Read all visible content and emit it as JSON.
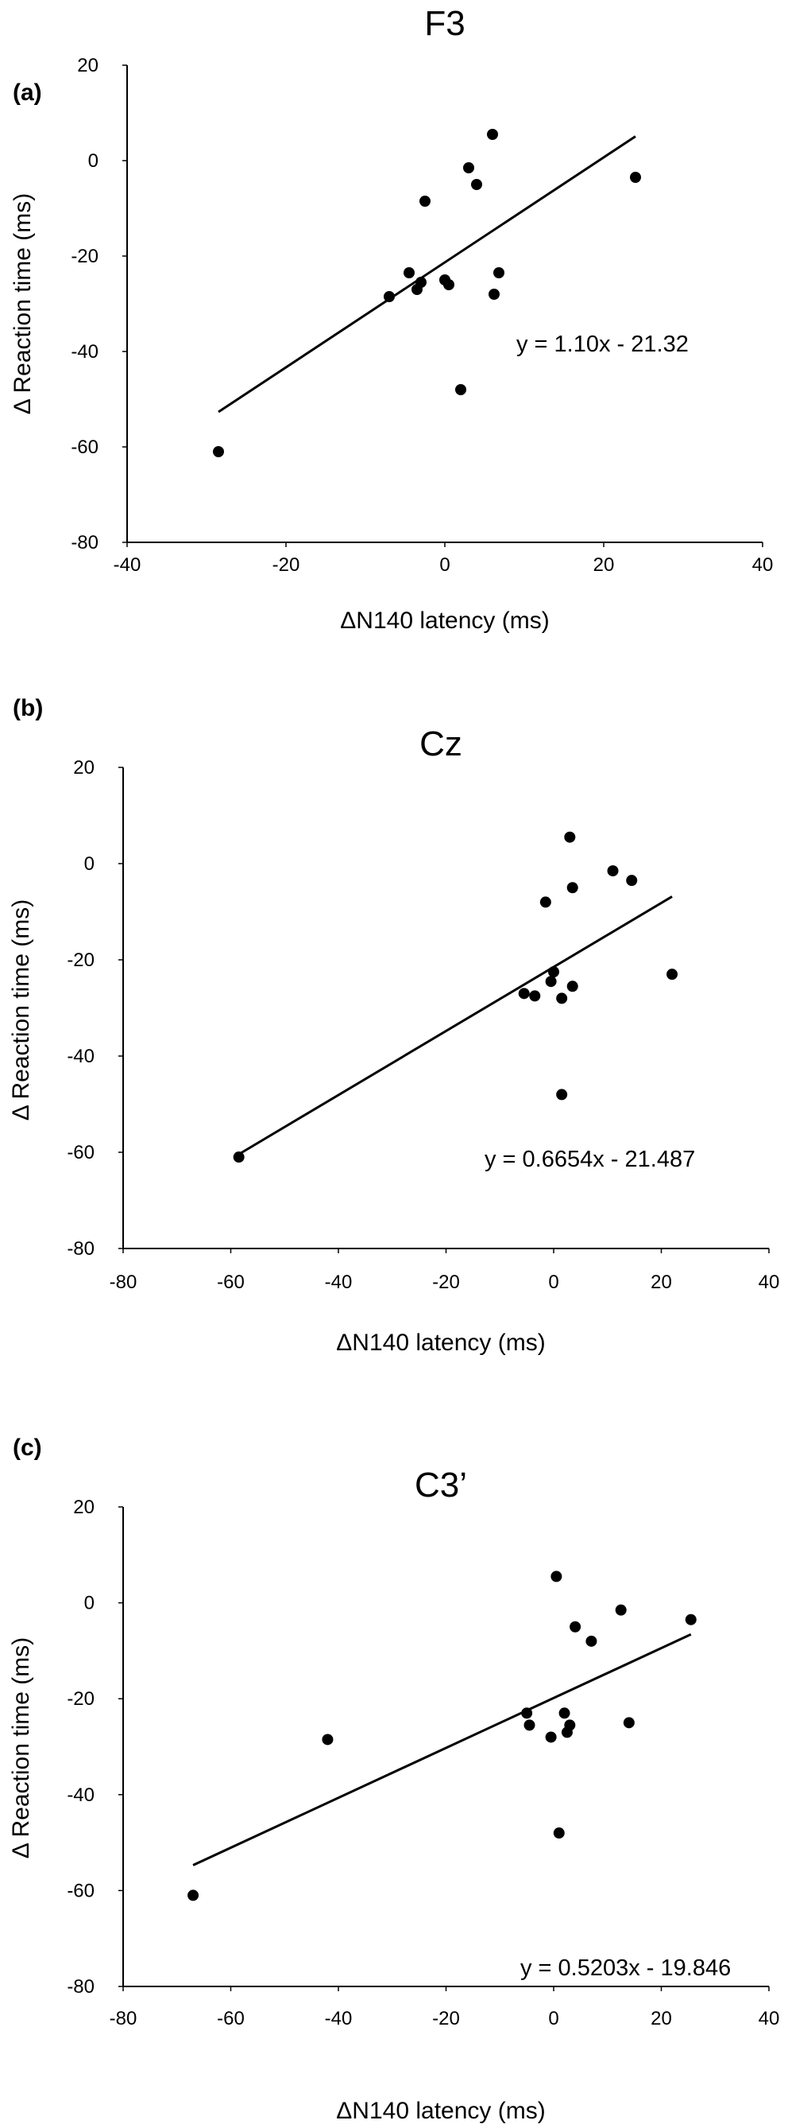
{
  "chart_data": [
    {
      "type": "scatter",
      "panel_label": "(a)",
      "title": "F3",
      "xlabel": "ΔN140 latency (ms)",
      "ylabel": "Δ Reaction time (ms)",
      "xlim": [
        -40,
        40
      ],
      "ylim": [
        -80,
        20
      ],
      "xticks": [
        "-40",
        "-20",
        "0",
        "20",
        "40"
      ],
      "yticks": [
        "-80",
        "-60",
        "-40",
        "-20",
        "0",
        "20"
      ],
      "points": [
        {
          "x": -28.5,
          "y": -61
        },
        {
          "x": -7,
          "y": -28.5
        },
        {
          "x": -4.5,
          "y": -23.5
        },
        {
          "x": -3.5,
          "y": -27
        },
        {
          "x": -3,
          "y": -25.5
        },
        {
          "x": -2.5,
          "y": -8.5
        },
        {
          "x": 0,
          "y": -25
        },
        {
          "x": 0.5,
          "y": -26
        },
        {
          "x": 2,
          "y": -48
        },
        {
          "x": 3,
          "y": -1.5
        },
        {
          "x": 4,
          "y": -5
        },
        {
          "x": 6,
          "y": 5.5
        },
        {
          "x": 6.2,
          "y": -28
        },
        {
          "x": 6.8,
          "y": -23.5
        },
        {
          "x": 24,
          "y": -3.5
        }
      ],
      "trendline": {
        "slope": 1.1,
        "intercept": -21.32,
        "x_range": [
          -28.5,
          24
        ]
      },
      "equation": "y = 1.10x - 21.32",
      "grid": false
    },
    {
      "type": "scatter",
      "panel_label": "(b)",
      "title": "Cz",
      "xlabel": "ΔN140 latency (ms)",
      "ylabel": "Δ Reaction time (ms)",
      "xlim": [
        -80,
        40
      ],
      "ylim": [
        -80,
        20
      ],
      "xticks": [
        "-80",
        "-60",
        "-40",
        "-20",
        "0",
        "20",
        "40"
      ],
      "yticks": [
        "-80",
        "-60",
        "-40",
        "-20",
        "0",
        "20"
      ],
      "points": [
        {
          "x": -58.5,
          "y": -61
        },
        {
          "x": -5.5,
          "y": -27
        },
        {
          "x": -3.5,
          "y": -27.5
        },
        {
          "x": -1.5,
          "y": -8
        },
        {
          "x": -0.5,
          "y": -24.5
        },
        {
          "x": 0,
          "y": -22.5
        },
        {
          "x": 1.5,
          "y": -28
        },
        {
          "x": 1.5,
          "y": -48
        },
        {
          "x": 3,
          "y": 5.5
        },
        {
          "x": 3.5,
          "y": -5
        },
        {
          "x": 3.5,
          "y": -25.5
        },
        {
          "x": 11,
          "y": -1.5
        },
        {
          "x": 14.5,
          "y": -3.5
        },
        {
          "x": 22,
          "y": -23
        }
      ],
      "trendline": {
        "slope": 0.6654,
        "intercept": -21.487,
        "x_range": [
          -58.5,
          22
        ]
      },
      "equation": "y = 0.6654x - 21.487",
      "grid": false
    },
    {
      "type": "scatter",
      "panel_label": "(c)",
      "title": "C3’",
      "xlabel": "ΔN140 latency (ms)",
      "ylabel": "Δ Reaction time (ms)",
      "xlim": [
        -80,
        40
      ],
      "ylim": [
        -80,
        20
      ],
      "xticks": [
        "-80",
        "-60",
        "-40",
        "-20",
        "0",
        "20",
        "40"
      ],
      "yticks": [
        "-80",
        "-60",
        "-40",
        "-20",
        "0",
        "20"
      ],
      "points": [
        {
          "x": -67,
          "y": -61
        },
        {
          "x": -42,
          "y": -28.5
        },
        {
          "x": -5,
          "y": -23
        },
        {
          "x": -4.5,
          "y": -25.5
        },
        {
          "x": -0.5,
          "y": -28
        },
        {
          "x": 0.5,
          "y": 5.5
        },
        {
          "x": 1,
          "y": -48
        },
        {
          "x": 2,
          "y": -23
        },
        {
          "x": 2.5,
          "y": -27
        },
        {
          "x": 3,
          "y": -25.5
        },
        {
          "x": 4,
          "y": -5
        },
        {
          "x": 7,
          "y": -8
        },
        {
          "x": 12.5,
          "y": -1.5
        },
        {
          "x": 14,
          "y": -25
        },
        {
          "x": 25.5,
          "y": -3.5
        }
      ],
      "trendline": {
        "slope": 0.5203,
        "intercept": -19.846,
        "x_range": [
          -67,
          25.5
        ]
      },
      "equation": "y = 0.5203x - 19.846",
      "grid": false
    }
  ]
}
